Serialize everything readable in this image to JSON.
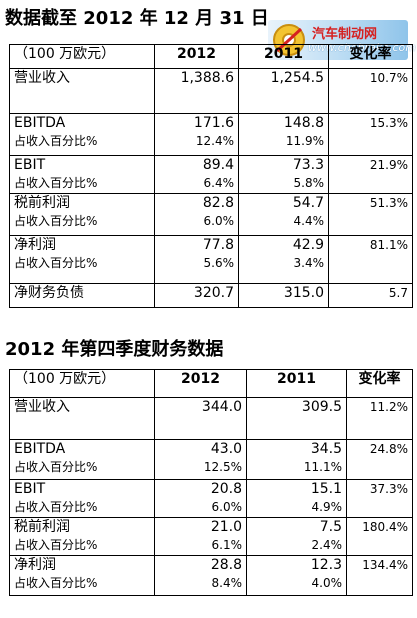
{
  "title_full_year": "数据截至 2012 年 12 月 31 日",
  "title_q4": "2012 年第四季度财务数据",
  "watermark": {
    "name": "汽车制动网",
    "url": "www.chebrake.com"
  },
  "table_full_year": {
    "headers": [
      "（100 万欧元）",
      "2012",
      "2011",
      "变化率"
    ],
    "rows": [
      {
        "label": "营业收入",
        "v2012": "1,388.6",
        "v2011": "1,254.5",
        "change": "10.7%"
      },
      {
        "label": "EBITDA",
        "v2012": "171.6",
        "v2011": "148.8",
        "change": "15.3%",
        "sub_label": "占收入百分比%",
        "s2012": "12.4%",
        "s2011": "11.9%"
      },
      {
        "label": "EBIT",
        "v2012": "89.4",
        "v2011": "73.3",
        "change": "21.9%",
        "sub_label": "占收入百分比%",
        "s2012": "6.4%",
        "s2011": "5.8%"
      },
      {
        "label": "税前利润",
        "v2012": "82.8",
        "v2011": "54.7",
        "change": "51.3%",
        "sub_label": "占收入百分比%",
        "s2012": "6.0%",
        "s2011": "4.4%"
      },
      {
        "label": "净利润",
        "v2012": "77.8",
        "v2011": "42.9",
        "change": "81.1%",
        "sub_label": "占收入百分比%",
        "s2012": "5.6%",
        "s2011": "3.4%"
      },
      {
        "label": "净财务负债",
        "v2012": "320.7",
        "v2011": "315.0",
        "change": "5.7"
      }
    ]
  },
  "table_q4": {
    "headers": [
      "（100 万欧元）",
      "2012",
      "2011",
      "变化率"
    ],
    "rows": [
      {
        "label": "营业收入",
        "v2012": "344.0",
        "v2011": "309.5",
        "change": "11.2%"
      },
      {
        "label": "EBITDA",
        "v2012": "43.0",
        "v2011": "34.5",
        "change": "24.8%",
        "sub_label": "占收入百分比%",
        "s2012": "12.5%",
        "s2011": "11.1%"
      },
      {
        "label": "EBIT",
        "v2012": "20.8",
        "v2011": "15.1",
        "change": "37.3%",
        "sub_label": "占收入百分比%",
        "s2012": "6.0%",
        "s2011": "4.9%"
      },
      {
        "label": "税前利润",
        "v2012": "21.0",
        "v2011": "7.5",
        "change": "180.4%",
        "sub_label": "占收入百分比%",
        "s2012": "6.1%",
        "s2011": "2.4%"
      },
      {
        "label": "净利润",
        "v2012": "28.8",
        "v2011": "12.3",
        "change": "134.4%",
        "sub_label": "占收入百分比%",
        "s2012": "8.4%",
        "s2011": "4.0%"
      }
    ]
  }
}
